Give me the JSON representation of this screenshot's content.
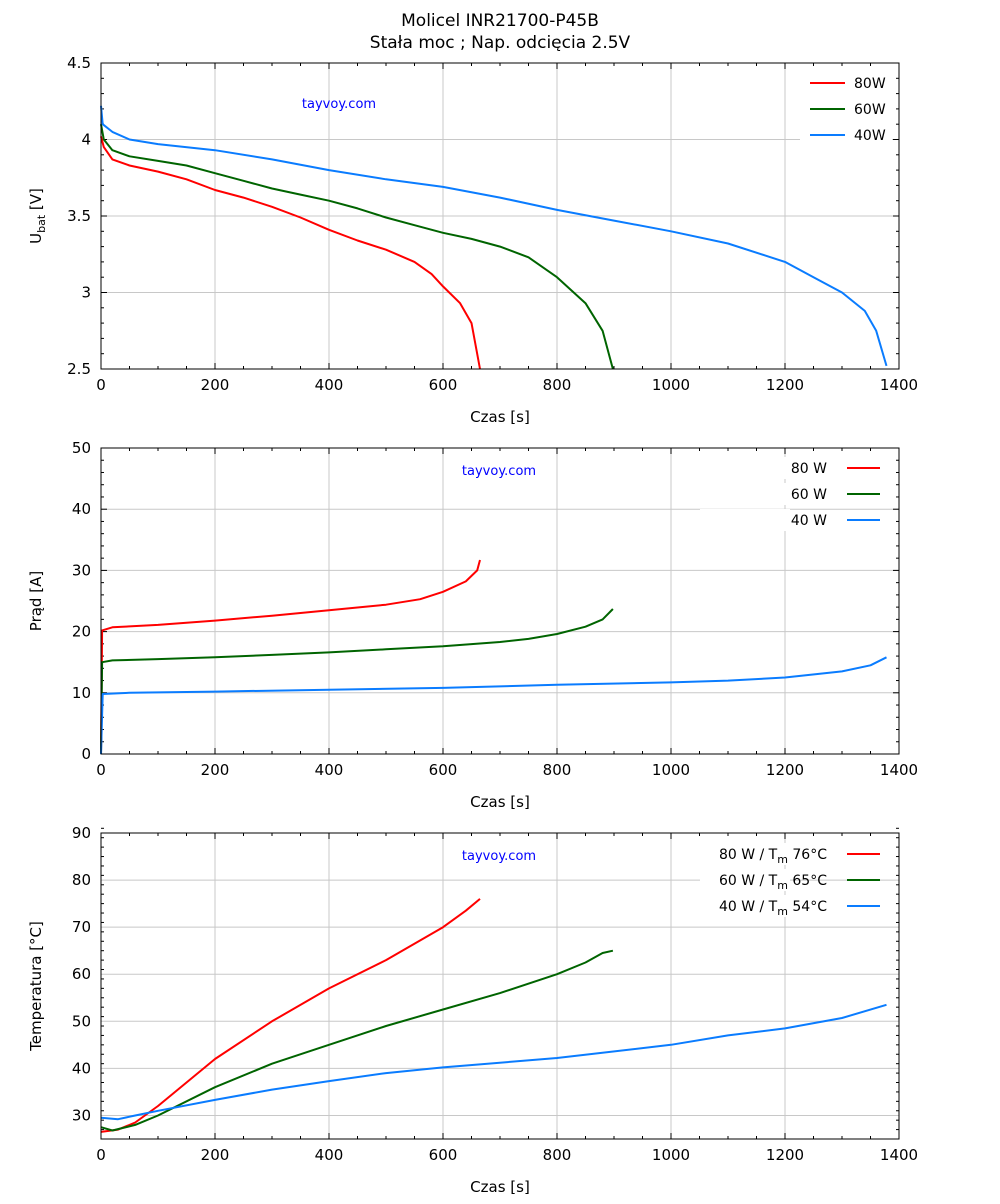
{
  "title": "Molicel INR21700-P45B",
  "subtitle": "Stała moc  ;  Nap. odcięcia 2.5V",
  "watermark": "tayvoy.com",
  "colors": {
    "80": "#ff0000",
    "60": "#006400",
    "40": "#0a7cff",
    "watermark": "#0000ff"
  },
  "chart_data": [
    {
      "type": "line",
      "xlabel": "Czas [s]",
      "ylabel": {
        "main": "U",
        "sub": "bat",
        "suffix": " [V]"
      },
      "xlim": [
        0,
        1400
      ],
      "ylim": [
        2.5,
        4.5
      ],
      "xticks": [
        0,
        200,
        400,
        600,
        800,
        1000,
        1200,
        1400
      ],
      "yticks": [
        2.5,
        3,
        3.5,
        4,
        4.5
      ],
      "ytick_labels": [
        "2.5",
        "3",
        "3.5",
        "4",
        "4.5"
      ],
      "grid": true,
      "legend_position": "top-right",
      "legend_style": "line-first",
      "series": [
        {
          "name": "80W",
          "color_key": "80",
          "points": [
            [
              0,
              4.02
            ],
            [
              5,
              3.95
            ],
            [
              20,
              3.87
            ],
            [
              50,
              3.83
            ],
            [
              100,
              3.79
            ],
            [
              150,
              3.74
            ],
            [
              200,
              3.67
            ],
            [
              250,
              3.62
            ],
            [
              300,
              3.56
            ],
            [
              350,
              3.49
            ],
            [
              400,
              3.41
            ],
            [
              450,
              3.34
            ],
            [
              500,
              3.28
            ],
            [
              550,
              3.2
            ],
            [
              580,
              3.12
            ],
            [
              600,
              3.04
            ],
            [
              630,
              2.93
            ],
            [
              650,
              2.8
            ],
            [
              665,
              2.5
            ]
          ]
        },
        {
          "name": "60W",
          "color_key": "60",
          "points": [
            [
              0,
              4.1
            ],
            [
              5,
              4.0
            ],
            [
              20,
              3.93
            ],
            [
              50,
              3.89
            ],
            [
              100,
              3.86
            ],
            [
              150,
              3.83
            ],
            [
              200,
              3.78
            ],
            [
              250,
              3.73
            ],
            [
              300,
              3.68
            ],
            [
              350,
              3.64
            ],
            [
              400,
              3.6
            ],
            [
              450,
              3.55
            ],
            [
              500,
              3.49
            ],
            [
              550,
              3.44
            ],
            [
              600,
              3.39
            ],
            [
              650,
              3.35
            ],
            [
              700,
              3.3
            ],
            [
              750,
              3.23
            ],
            [
              800,
              3.1
            ],
            [
              850,
              2.93
            ],
            [
              880,
              2.75
            ],
            [
              898,
              2.5
            ]
          ]
        },
        {
          "name": "40W",
          "color_key": "40",
          "points": [
            [
              0,
              4.22
            ],
            [
              3,
              4.1
            ],
            [
              20,
              4.05
            ],
            [
              50,
              4.0
            ],
            [
              100,
              3.97
            ],
            [
              200,
              3.93
            ],
            [
              300,
              3.87
            ],
            [
              400,
              3.8
            ],
            [
              500,
              3.74
            ],
            [
              600,
              3.69
            ],
            [
              700,
              3.62
            ],
            [
              800,
              3.54
            ],
            [
              900,
              3.47
            ],
            [
              1000,
              3.4
            ],
            [
              1100,
              3.32
            ],
            [
              1200,
              3.2
            ],
            [
              1250,
              3.1
            ],
            [
              1300,
              3.0
            ],
            [
              1340,
              2.88
            ],
            [
              1360,
              2.75
            ],
            [
              1378,
              2.52
            ]
          ]
        }
      ]
    },
    {
      "type": "line",
      "xlabel": "Czas [s]",
      "ylabel": {
        "main": "Prąd [A]",
        "sub": "",
        "suffix": ""
      },
      "xlim": [
        0,
        1400
      ],
      "ylim": [
        0,
        50
      ],
      "xticks": [
        0,
        200,
        400,
        600,
        800,
        1000,
        1200,
        1400
      ],
      "yticks": [
        0,
        10,
        20,
        30,
        40,
        50
      ],
      "ytick_labels": [
        "0",
        "10",
        "20",
        "30",
        "40",
        "50"
      ],
      "grid": true,
      "legend_position": "top-right",
      "legend_style": "label-first",
      "series": [
        {
          "name": "80 W",
          "color_key": "80",
          "points": [
            [
              0,
              0
            ],
            [
              2,
              20.2
            ],
            [
              20,
              20.7
            ],
            [
              100,
              21.1
            ],
            [
              200,
              21.8
            ],
            [
              300,
              22.6
            ],
            [
              400,
              23.5
            ],
            [
              500,
              24.4
            ],
            [
              560,
              25.3
            ],
            [
              600,
              26.5
            ],
            [
              640,
              28.2
            ],
            [
              660,
              30
            ],
            [
              665,
              31.7
            ]
          ]
        },
        {
          "name": "60 W",
          "color_key": "60",
          "points": [
            [
              0,
              0
            ],
            [
              2,
              15
            ],
            [
              20,
              15.3
            ],
            [
              100,
              15.5
            ],
            [
              200,
              15.8
            ],
            [
              300,
              16.2
            ],
            [
              400,
              16.6
            ],
            [
              500,
              17.1
            ],
            [
              600,
              17.6
            ],
            [
              700,
              18.3
            ],
            [
              750,
              18.8
            ],
            [
              800,
              19.6
            ],
            [
              850,
              20.8
            ],
            [
              880,
              22
            ],
            [
              898,
              23.7
            ]
          ]
        },
        {
          "name": "40 W",
          "color_key": "40",
          "points": [
            [
              0,
              0
            ],
            [
              3,
              9.8
            ],
            [
              50,
              10
            ],
            [
              200,
              10.2
            ],
            [
              400,
              10.5
            ],
            [
              600,
              10.8
            ],
            [
              800,
              11.3
            ],
            [
              1000,
              11.7
            ],
            [
              1100,
              12
            ],
            [
              1200,
              12.5
            ],
            [
              1300,
              13.5
            ],
            [
              1350,
              14.5
            ],
            [
              1378,
              15.8
            ]
          ]
        }
      ]
    },
    {
      "type": "line",
      "xlabel": "Czas [s]",
      "ylabel": {
        "main": "Temperatura [°C]",
        "sub": "",
        "suffix": ""
      },
      "xlim": [
        0,
        1400
      ],
      "ylim": [
        25,
        90
      ],
      "xticks": [
        0,
        200,
        400,
        600,
        800,
        1000,
        1200,
        1400
      ],
      "yticks": [
        30,
        40,
        50,
        60,
        70,
        80,
        90
      ],
      "ytick_labels": [
        "30",
        "40",
        "50",
        "60",
        "70",
        "80",
        "90"
      ],
      "grid": true,
      "legend_position": "top-right",
      "legend_style": "label-first",
      "series": [
        {
          "name": "80 W  / T",
          "name_sub": "m",
          "name_suffix": " 76°C",
          "color_key": "80",
          "points": [
            [
              0,
              26.5
            ],
            [
              30,
              27
            ],
            [
              60,
              28.5
            ],
            [
              100,
              32
            ],
            [
              150,
              37
            ],
            [
              200,
              42
            ],
            [
              300,
              50
            ],
            [
              400,
              57
            ],
            [
              500,
              63
            ],
            [
              600,
              70
            ],
            [
              640,
              73.5
            ],
            [
              665,
              76
            ]
          ]
        },
        {
          "name": "60 W  / T",
          "name_sub": "m",
          "name_suffix": " 65°C",
          "color_key": "60",
          "points": [
            [
              0,
              27.5
            ],
            [
              20,
              26.8
            ],
            [
              60,
              28
            ],
            [
              100,
              30
            ],
            [
              200,
              36
            ],
            [
              300,
              41
            ],
            [
              400,
              45
            ],
            [
              500,
              49
            ],
            [
              600,
              52.5
            ],
            [
              700,
              56
            ],
            [
              800,
              60
            ],
            [
              850,
              62.5
            ],
            [
              880,
              64.5
            ],
            [
              898,
              65
            ]
          ]
        },
        {
          "name": "40 W  / T",
          "name_sub": "m",
          "name_suffix": " 54°C",
          "color_key": "40",
          "points": [
            [
              0,
              29.5
            ],
            [
              30,
              29.2
            ],
            [
              60,
              30
            ],
            [
              100,
              31
            ],
            [
              200,
              33.3
            ],
            [
              300,
              35.5
            ],
            [
              400,
              37.3
            ],
            [
              500,
              39
            ],
            [
              600,
              40.2
            ],
            [
              800,
              42.2
            ],
            [
              1000,
              45
            ],
            [
              1100,
              47
            ],
            [
              1200,
              48.5
            ],
            [
              1300,
              50.7
            ],
            [
              1378,
              53.5
            ]
          ]
        }
      ]
    }
  ]
}
